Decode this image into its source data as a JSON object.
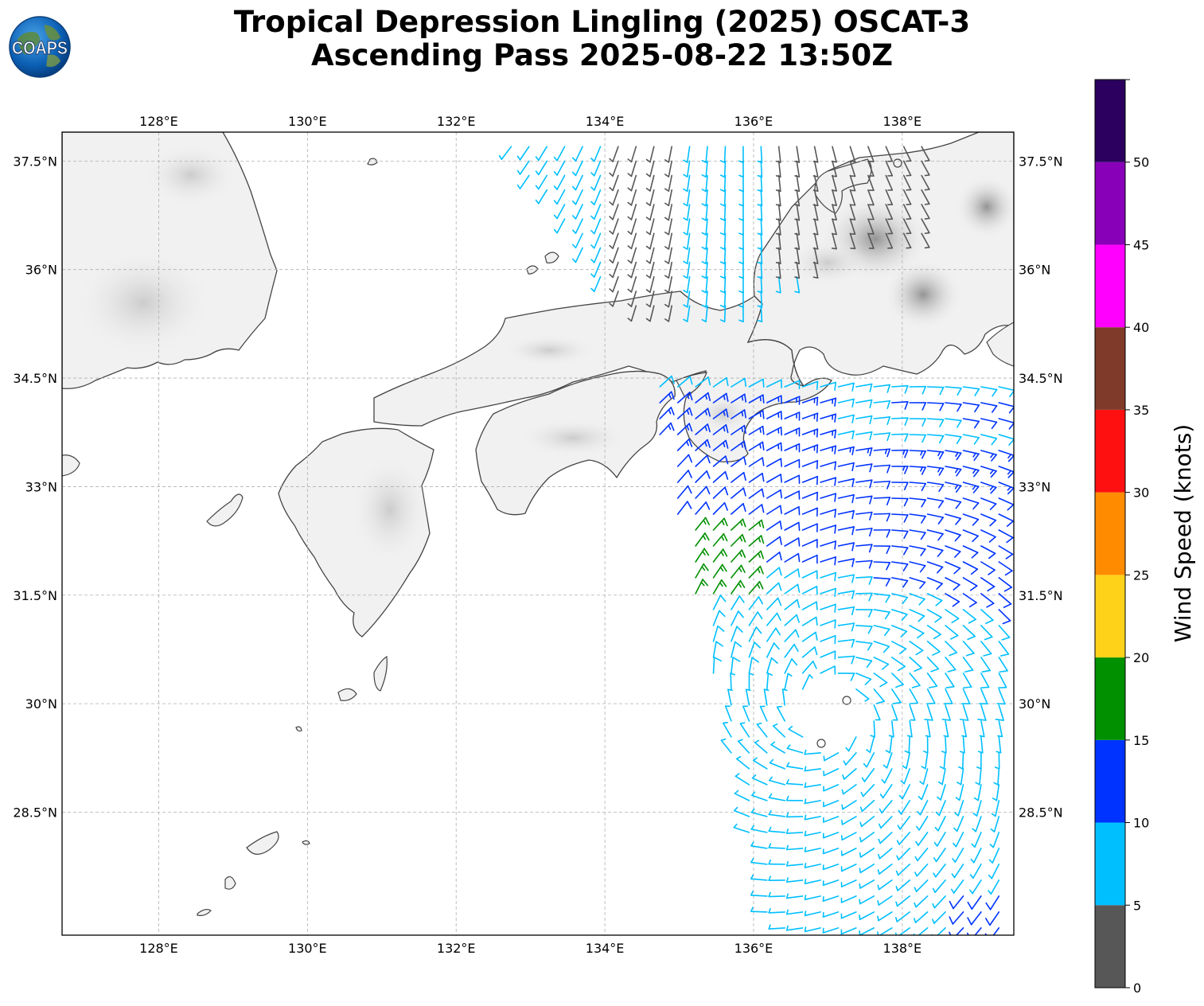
{
  "title": {
    "line1": "Tropical Depression Lingling (2025) OSCAT-3",
    "line2": "Ascending Pass 2025-08-22 13:50Z"
  },
  "logo": {
    "text": "COAPS",
    "icon": "globe-logo-icon"
  },
  "map": {
    "lon_range": [
      126.7,
      139.5
    ],
    "lat_range": [
      26.8,
      37.9
    ],
    "lon_ticks": [
      "128°E",
      "130°E",
      "132°E",
      "134°E",
      "136°E",
      "138°E"
    ],
    "lon_tick_values": [
      128,
      130,
      132,
      134,
      136,
      138
    ],
    "lat_ticks": [
      "37.5°N",
      "36°N",
      "34.5°N",
      "33°N",
      "31.5°N",
      "30°N",
      "28.5°N"
    ],
    "lat_tick_values": [
      37.5,
      36,
      34.5,
      33,
      31.5,
      30,
      28.5
    ],
    "grid": true,
    "land_color": "#f3f3f3",
    "coast_color": "#444444"
  },
  "colorbar": {
    "label": "Wind Speed (knots)",
    "ticks": [
      "0",
      "5",
      "10",
      "15",
      "20",
      "25",
      "30",
      "35",
      "40",
      "45",
      "50"
    ],
    "bins": [
      {
        "min": 0,
        "max": 5,
        "color": "#575757"
      },
      {
        "min": 5,
        "max": 10,
        "color": "#00bfff"
      },
      {
        "min": 10,
        "max": 15,
        "color": "#0033ff"
      },
      {
        "min": 15,
        "max": 20,
        "color": "#009000"
      },
      {
        "min": 20,
        "max": 25,
        "color": "#ffd21a"
      },
      {
        "min": 25,
        "max": 30,
        "color": "#ff8c00"
      },
      {
        "min": 30,
        "max": 35,
        "color": "#ff1010"
      },
      {
        "min": 35,
        "max": 40,
        "color": "#7f3a2a"
      },
      {
        "min": 40,
        "max": 45,
        "color": "#ff00ff"
      },
      {
        "min": 45,
        "max": 50,
        "color": "#8800b8"
      },
      {
        "min": 50,
        "max": 55,
        "color": "#2b005e"
      }
    ]
  },
  "chart_data": {
    "type": "wind-barb-map",
    "center": {
      "lon": 137.0,
      "lat": 29.9
    },
    "swath_north": {
      "lon_range": [
        132.5,
        138.5
      ],
      "lat_range": [
        35.5,
        37.8
      ],
      "samples": [
        {
          "lon": 133.2,
          "lat": 37.4,
          "dir_deg": 200,
          "speed_kt": 8
        },
        {
          "lon": 134.5,
          "lat": 36.8,
          "dir_deg": 190,
          "speed_kt": 4
        },
        {
          "lon": 135.5,
          "lat": 36.3,
          "dir_deg": 170,
          "speed_kt": 7
        },
        {
          "lon": 136.5,
          "lat": 37.2,
          "dir_deg": 220,
          "speed_kt": 3
        },
        {
          "lon": 137.5,
          "lat": 37.5,
          "dir_deg": 240,
          "speed_kt": 4
        }
      ]
    },
    "swath_south": {
      "lon_range": [
        134.5,
        139.5
      ],
      "lat_range": [
        26.8,
        34.5
      ],
      "samples": [
        {
          "lon": 135.0,
          "lat": 32.3,
          "dir_deg": 225,
          "speed_kt": 16
        },
        {
          "lon": 136.5,
          "lat": 32.5,
          "dir_deg": 230,
          "speed_kt": 12
        },
        {
          "lon": 137.8,
          "lat": 33.8,
          "dir_deg": 240,
          "speed_kt": 11
        },
        {
          "lon": 138.8,
          "lat": 34.3,
          "dir_deg": 250,
          "speed_kt": 8
        },
        {
          "lon": 137.0,
          "lat": 29.5,
          "dir_deg": 90,
          "speed_kt": 7
        },
        {
          "lon": 138.0,
          "lat": 27.5,
          "dir_deg": 120,
          "speed_kt": 8
        },
        {
          "lon": 139.2,
          "lat": 27.0,
          "dir_deg": 150,
          "speed_kt": 11
        }
      ]
    }
  }
}
